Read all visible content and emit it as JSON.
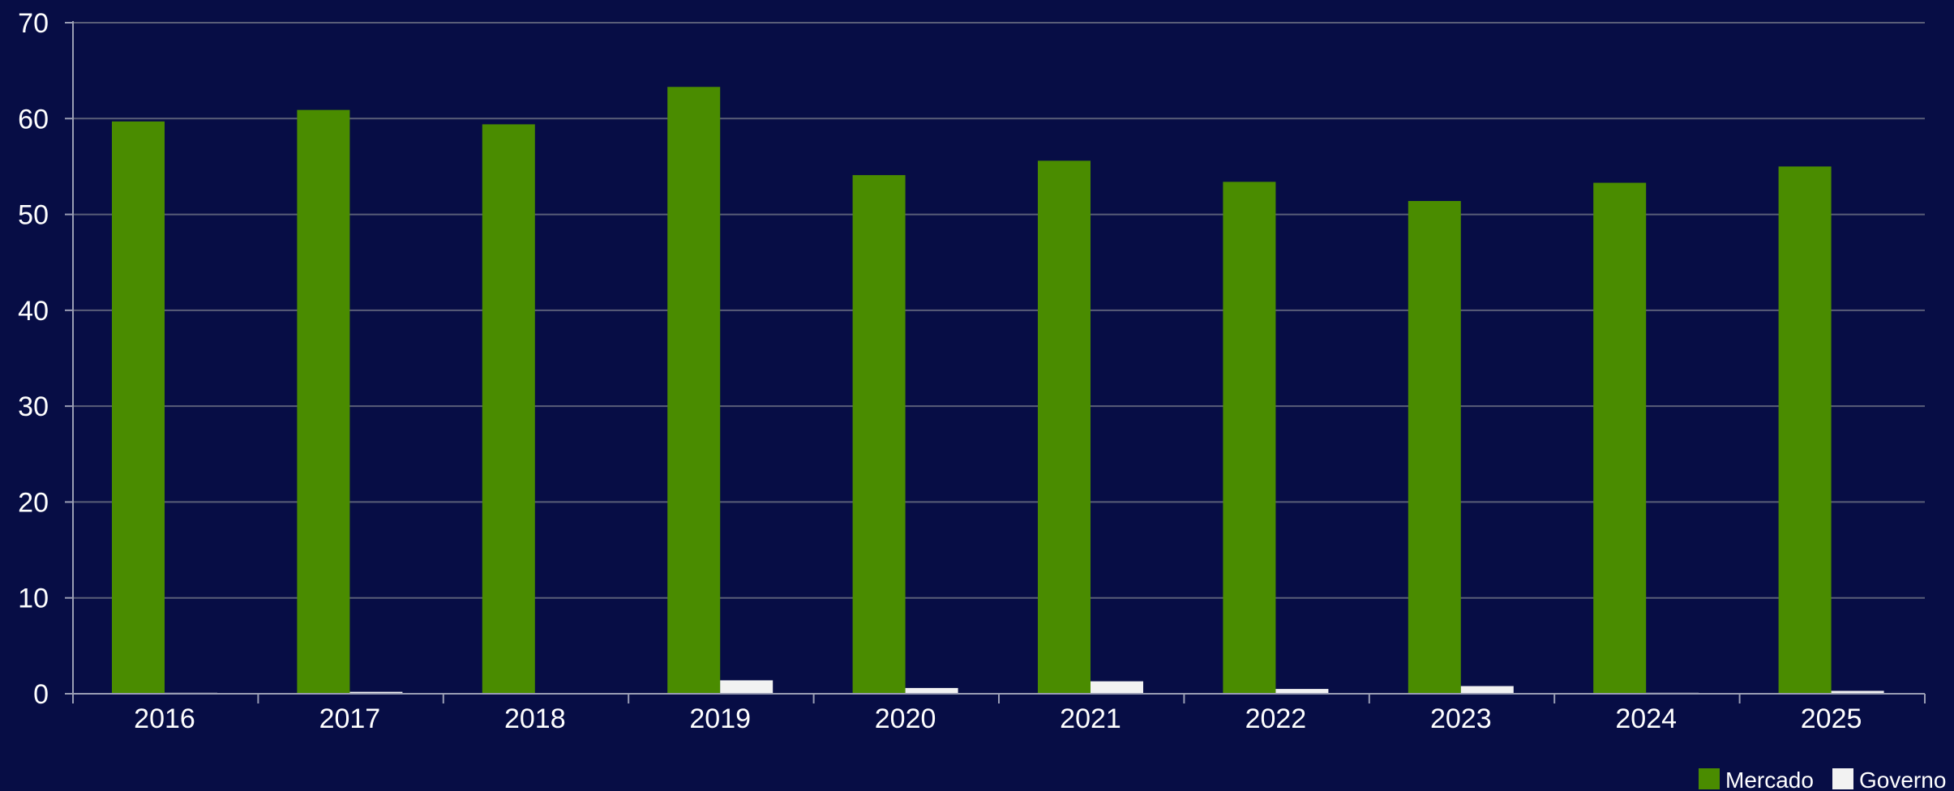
{
  "chart_data": {
    "type": "bar",
    "categories": [
      "2016",
      "2017",
      "2018",
      "2019",
      "2020",
      "2021",
      "2022",
      "2023",
      "2024",
      "2025"
    ],
    "series": [
      {
        "name": "Mercado",
        "color": "#4a8c00",
        "values": [
          59.7,
          60.9,
          59.4,
          63.3,
          54.1,
          55.6,
          53.4,
          51.4,
          53.3,
          55.0
        ]
      },
      {
        "name": "Governo",
        "color": "#f2f2f2",
        "values": [
          0.1,
          0.2,
          0.0,
          1.4,
          0.6,
          1.3,
          0.5,
          0.8,
          0.1,
          0.3
        ]
      }
    ],
    "y_ticks": [
      "0",
      "10",
      "20",
      "30",
      "40",
      "50",
      "60",
      "70"
    ],
    "ylim": [
      0,
      70
    ],
    "grid": true,
    "legend_position": "bottom-right"
  },
  "colors": {
    "background": "#070d45",
    "grid": "#5a5e78",
    "axis": "#9a9eb4",
    "text": "#ffffff"
  }
}
